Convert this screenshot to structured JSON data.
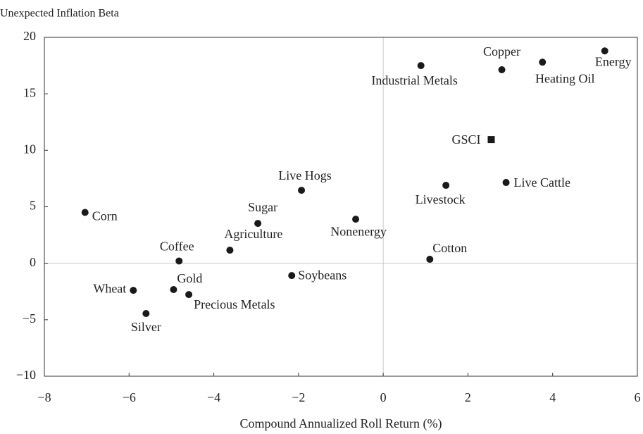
{
  "chart_data": {
    "type": "scatter",
    "title": "Unexpected Inflation Beta",
    "x_label": "Compound Annualized Roll Return (%)",
    "labels": [
      "Corn",
      "Wheat",
      "Silver",
      "Gold",
      "Precious Metals",
      "Coffee",
      "Agriculture",
      "Sugar",
      "Live Hogs",
      "Soybeans",
      "Nonenergy",
      "Cotton",
      "Livestock",
      "Live Cattle",
      "GSCI",
      "Industrial Metals",
      "Copper",
      "Heating Oil",
      "Energy"
    ],
    "x": [
      -7.04,
      -5.9,
      -5.6,
      -4.95,
      -4.59,
      -4.82,
      -3.62,
      -2.96,
      -1.93,
      -2.16,
      -0.65,
      1.1,
      1.48,
      2.9,
      2.55,
      0.89,
      2.8,
      3.76,
      5.23
    ],
    "y": [
      4.5,
      -2.4,
      -4.45,
      -2.33,
      -2.77,
      0.2,
      1.16,
      3.53,
      6.46,
      -1.09,
      3.9,
      0.35,
      6.9,
      7.15,
      10.95,
      17.5,
      17.13,
      17.8,
      18.8
    ],
    "markers": [
      "circle",
      "circle",
      "circle",
      "circle",
      "circle",
      "circle",
      "circle",
      "circle",
      "circle",
      "circle",
      "circle",
      "circle",
      "circle",
      "circle",
      "square",
      "circle",
      "circle",
      "circle",
      "circle"
    ],
    "color": "#1a1a1a",
    "xlim": [
      -8,
      6
    ],
    "ylim": [
      -10,
      20
    ],
    "xticks": [
      {
        "value": -8,
        "label": "−8"
      },
      {
        "value": -6,
        "label": "−6"
      },
      {
        "value": -4,
        "label": "−4"
      },
      {
        "value": -2,
        "label": "−2"
      },
      0,
      2,
      4,
      6
    ],
    "yticks": [
      {
        "value": -10,
        "label": "−10"
      },
      {
        "value": -5,
        "label": "−5"
      },
      0,
      5,
      10,
      15,
      20
    ],
    "zero_lines": true
  }
}
